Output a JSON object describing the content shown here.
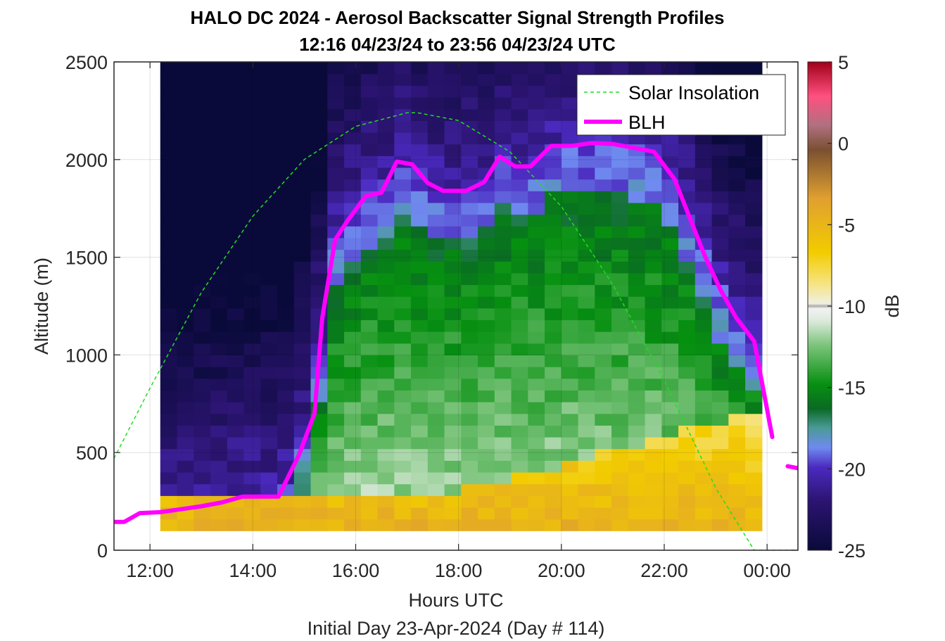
{
  "figure": {
    "title_line1": "HALO DC 2024 - Aerosol Backscatter Signal Strength Profiles",
    "title_line2": "12:16 04/23/24 to 23:56 04/23/24  UTC",
    "xlabel": "Hours UTC",
    "ylabel": "Altitude (m)",
    "footer": "Initial Day 23-Apr-2024 (Day # 114)",
    "colorbar_label": "dB"
  },
  "chart_data": {
    "type": "heatmap",
    "title": "HALO DC 2024 - Aerosol Backscatter Signal Strength Profiles",
    "subtitle": "12:16 04/23/24 to 23:56 04/23/24  UTC",
    "xlabel": "Hours UTC",
    "ylabel": "Altitude (m)",
    "xlim": [
      11.3,
      24.6
    ],
    "ylim": [
      0,
      2500
    ],
    "x_ticks": [
      12,
      14,
      16,
      18,
      20,
      22,
      24
    ],
    "x_tick_labels": [
      "12:00",
      "14:00",
      "16:00",
      "18:00",
      "20:00",
      "22:00",
      "00:00"
    ],
    "y_ticks": [
      0,
      500,
      1000,
      1500,
      2000,
      2500
    ],
    "y_tick_labels": [
      "0",
      "500",
      "1000",
      "1500",
      "2000",
      "2500"
    ],
    "grid": true,
    "legend_position": "top-right",
    "colorbar": {
      "label": "dB",
      "range": [
        -25,
        5
      ],
      "ticks": [
        -25,
        -20,
        -15,
        -10,
        -5,
        0,
        5
      ],
      "tick_labels": [
        "-25",
        "-20",
        "-15",
        "-10",
        "-5",
        "0",
        "5"
      ]
    },
    "heatmap_extent": {
      "x": [
        12.2,
        23.9
      ],
      "y": [
        100,
        2500
      ]
    },
    "series": [
      {
        "name": "Solar Insolation",
        "style": "dashed",
        "color": "#22dd22",
        "x": [
          11.3,
          12.0,
          13.0,
          14.0,
          15.0,
          16.0,
          17.0,
          17.2,
          18.0,
          19.0,
          20.0,
          21.0,
          22.0,
          23.0,
          23.75,
          24.6
        ],
        "y": [
          470,
          830,
          1320,
          1710,
          2000,
          2170,
          2240,
          2240,
          2200,
          2040,
          1760,
          1360,
          870,
          320,
          0,
          0
        ]
      },
      {
        "name": "BLH",
        "style": "solid",
        "color": "#ff00ff",
        "x": [
          11.3,
          11.5,
          11.8,
          12.2,
          12.6,
          13.0,
          13.4,
          13.8,
          14.1,
          14.5,
          14.9,
          15.2,
          15.35,
          15.6,
          15.85,
          16.2,
          16.5,
          16.8,
          17.1,
          17.4,
          17.7,
          18.15,
          18.5,
          18.8,
          19.1,
          19.4,
          19.8,
          20.2,
          20.6,
          21.0,
          21.4,
          21.8,
          22.2,
          22.5,
          22.8,
          23.1,
          23.4,
          23.75,
          24.1
        ],
        "y": [
          145,
          145,
          190,
          195,
          210,
          225,
          245,
          275,
          275,
          275,
          490,
          700,
          1190,
          1590,
          1690,
          1815,
          1830,
          1990,
          1975,
          1880,
          1840,
          1840,
          1885,
          2015,
          1965,
          1965,
          2070,
          2070,
          2085,
          2080,
          2060,
          2040,
          1900,
          1700,
          1500,
          1330,
          1190,
          1070,
          580
        ],
        "segments": [
          {
            "x": [
              24.4,
              24.6
            ],
            "y": [
              430,
              420
            ]
          }
        ]
      }
    ]
  }
}
